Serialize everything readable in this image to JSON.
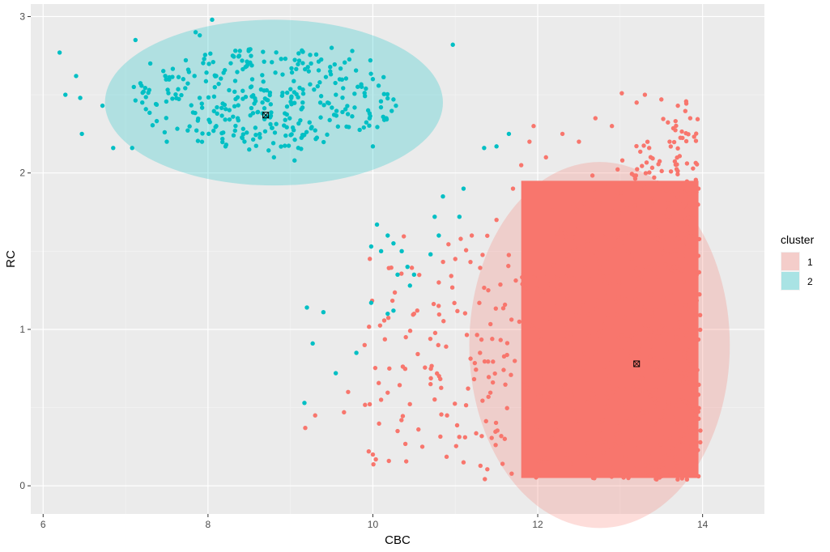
{
  "chart_data": {
    "type": "scatter",
    "xlabel": "CBC",
    "ylabel": "RC",
    "xlim": [
      5.85,
      14.75
    ],
    "ylim": [
      -0.18,
      3.08
    ],
    "x_ticks": [
      6,
      8,
      10,
      12,
      14
    ],
    "y_ticks": [
      0,
      1,
      2,
      3
    ],
    "grid": true,
    "legend": {
      "title": "cluster",
      "position": "right"
    },
    "series": [
      {
        "name": "1",
        "color": "#F8766D",
        "ellipse_color": "#F8766D",
        "centroid": [
          13.2,
          0.78
        ],
        "ellipse": {
          "center": [
            12.75,
            0.9
          ],
          "semi_axis_x": 1.58,
          "semi_axis_y": 1.17
        },
        "dense_region": {
          "x_range": [
            11.8,
            13.95
          ],
          "y_range": [
            0.05,
            1.95
          ]
        },
        "sample_points": [
          [
            9.18,
            0.37
          ],
          [
            9.3,
            0.45
          ],
          [
            9.65,
            0.47
          ],
          [
            9.7,
            0.6
          ],
          [
            9.9,
            0.9
          ],
          [
            9.95,
            0.22
          ],
          [
            10.0,
            0.2
          ],
          [
            10.1,
            0.55
          ],
          [
            10.2,
            0.75
          ],
          [
            10.3,
            0.35
          ],
          [
            10.4,
            0.95
          ],
          [
            10.5,
            1.1
          ],
          [
            10.6,
            0.25
          ],
          [
            10.7,
            0.65
          ],
          [
            10.8,
            1.3
          ],
          [
            10.9,
            0.45
          ],
          [
            11.0,
            1.45
          ],
          [
            11.1,
            0.15
          ],
          [
            11.2,
            1.6
          ],
          [
            11.3,
            0.85
          ],
          [
            11.4,
            1.25
          ],
          [
            11.5,
            1.7
          ],
          [
            11.6,
            0.3
          ],
          [
            11.7,
            1.9
          ],
          [
            11.8,
            2.05
          ],
          [
            11.9,
            2.2
          ],
          [
            11.95,
            2.3
          ],
          [
            12.1,
            2.1
          ],
          [
            12.3,
            2.25
          ],
          [
            12.5,
            2.2
          ],
          [
            12.7,
            2.35
          ],
          [
            12.9,
            2.3
          ],
          [
            13.02,
            2.51
          ],
          [
            13.2,
            2.45
          ],
          [
            13.3,
            2.5
          ],
          [
            13.5,
            2.47
          ],
          [
            13.7,
            2.43
          ],
          [
            13.85,
            2.35
          ],
          [
            13.95,
            1.9
          ],
          [
            13.6,
            2.2
          ],
          [
            13.1,
            0.05
          ],
          [
            13.4,
            0.08
          ]
        ]
      },
      {
        "name": "2",
        "color": "#00BFC4",
        "ellipse_color": "#00BFC4",
        "centroid": [
          8.7,
          2.37
        ],
        "ellipse": {
          "center": [
            8.8,
            2.45
          ],
          "semi_axis_x": 2.05,
          "semi_axis_y": 0.53
        },
        "sample_points": [
          [
            6.2,
            2.77
          ],
          [
            6.27,
            2.5
          ],
          [
            6.4,
            2.62
          ],
          [
            6.45,
            2.48
          ],
          [
            6.47,
            2.25
          ],
          [
            6.72,
            2.43
          ],
          [
            6.85,
            2.16
          ],
          [
            7.08,
            2.16
          ],
          [
            7.1,
            2.55
          ],
          [
            7.12,
            2.85
          ],
          [
            7.3,
            2.7
          ],
          [
            7.5,
            2.2
          ],
          [
            7.7,
            2.6
          ],
          [
            7.85,
            2.9
          ],
          [
            7.9,
            2.88
          ],
          [
            8.05,
            2.98
          ],
          [
            8.1,
            2.3
          ],
          [
            8.3,
            2.75
          ],
          [
            8.5,
            2.15
          ],
          [
            8.8,
            2.1
          ],
          [
            9.05,
            2.08
          ],
          [
            9.25,
            2.7
          ],
          [
            9.5,
            2.8
          ],
          [
            9.75,
            2.78
          ],
          [
            9.97,
            2.72
          ],
          [
            10.0,
            2.6
          ],
          [
            10.0,
            2.17
          ],
          [
            10.25,
            2.47
          ],
          [
            10.28,
            2.43
          ],
          [
            10.97,
            2.82
          ],
          [
            11.35,
            2.16
          ],
          [
            11.5,
            2.17
          ],
          [
            11.65,
            2.25
          ],
          [
            10.05,
            1.67
          ],
          [
            9.98,
            1.53
          ],
          [
            10.1,
            1.5
          ],
          [
            10.18,
            1.6
          ],
          [
            10.25,
            1.55
          ],
          [
            10.35,
            1.5
          ],
          [
            10.3,
            1.35
          ],
          [
            10.42,
            1.4
          ],
          [
            10.45,
            1.28
          ],
          [
            10.5,
            1.35
          ],
          [
            10.7,
            1.48
          ],
          [
            10.75,
            1.72
          ],
          [
            10.8,
            1.6
          ],
          [
            10.85,
            1.85
          ],
          [
            11.05,
            1.72
          ],
          [
            11.1,
            1.9
          ],
          [
            10.18,
            1.1
          ],
          [
            10.25,
            1.12
          ],
          [
            9.98,
            1.17
          ],
          [
            9.2,
            1.14
          ],
          [
            9.4,
            1.11
          ],
          [
            9.27,
            0.91
          ],
          [
            9.8,
            0.85
          ],
          [
            9.55,
            0.72
          ],
          [
            9.17,
            0.53
          ]
        ]
      }
    ]
  }
}
